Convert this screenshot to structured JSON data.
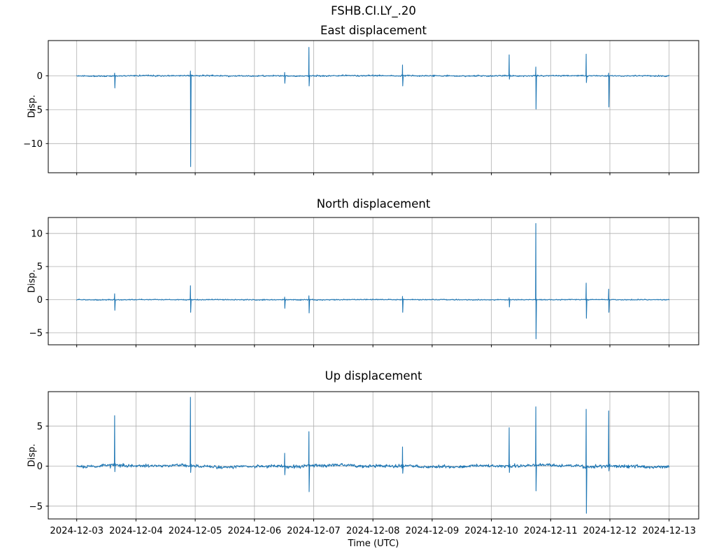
{
  "figure": {
    "suptitle": "FSHB.CI.LY_.20",
    "xlabel": "Time (UTC)"
  },
  "chart_data": {
    "type": "line",
    "suptitle": "FSHB.CI.LY_.20",
    "xlabel": "Time (UTC)",
    "line_color": "#1f77b4",
    "grid_color": "#b0b0b0",
    "spine_color": "#000000",
    "x_axis": {
      "units": "days since 2024-12-03 00:00 UTC",
      "xlim_days": [
        -0.48,
        10.5
      ],
      "data_range_days": [
        0,
        10
      ],
      "tick_positions_days": [
        0,
        1,
        2,
        3,
        4,
        5,
        6,
        7,
        8,
        9,
        10
      ],
      "tick_labels": [
        "2024-12-03",
        "2024-12-04",
        "2024-12-05",
        "2024-12-06",
        "2024-12-07",
        "2024-12-08",
        "2024-12-09",
        "2024-12-10",
        "2024-12-11",
        "2024-12-12",
        "2024-12-13"
      ]
    },
    "subplots": [
      {
        "id": "east",
        "title": "East displacement",
        "ylabel": "Disp.",
        "ylim": [
          -14.3,
          5.2
        ],
        "yticks": [
          0,
          -5,
          -10
        ],
        "baseline": 0,
        "noise": {
          "sigma": 0.05,
          "wander": 0.02,
          "seed": 11
        },
        "spikes": [
          {
            "t_days": 0.64,
            "peak": 0.4,
            "trough": -1.8
          },
          {
            "t_days": 1.92,
            "peak": 0.7,
            "trough": -13.4
          },
          {
            "t_days": 3.51,
            "peak": 0.5,
            "trough": -1.1
          },
          {
            "t_days": 3.92,
            "peak": 4.2,
            "trough": -1.5
          },
          {
            "t_days": 5.5,
            "peak": 1.6,
            "trough": -1.5
          },
          {
            "t_days": 7.3,
            "peak": 3.1,
            "trough": -0.5
          },
          {
            "t_days": 7.75,
            "peak": 1.3,
            "trough": -4.9
          },
          {
            "t_days": 8.6,
            "peak": 3.2,
            "trough": -1.0
          },
          {
            "t_days": 8.98,
            "peak": 0.4,
            "trough": -4.6
          }
        ]
      },
      {
        "id": "north",
        "title": "North displacement",
        "ylabel": "Disp.",
        "ylim": [
          -6.8,
          12.4
        ],
        "yticks": [
          10,
          5,
          0,
          -5
        ],
        "baseline": 0,
        "noise": {
          "sigma": 0.035,
          "wander": 0.012,
          "seed": 23
        },
        "spikes": [
          {
            "t_days": 0.64,
            "peak": 0.9,
            "trough": -1.6
          },
          {
            "t_days": 1.92,
            "peak": 2.1,
            "trough": -1.9
          },
          {
            "t_days": 3.51,
            "peak": 0.4,
            "trough": -1.3
          },
          {
            "t_days": 3.92,
            "peak": 0.6,
            "trough": -2.0
          },
          {
            "t_days": 5.5,
            "peak": 0.5,
            "trough": -1.9
          },
          {
            "t_days": 7.3,
            "peak": 0.3,
            "trough": -1.1
          },
          {
            "t_days": 7.75,
            "peak": 11.5,
            "trough": -5.9
          },
          {
            "t_days": 8.6,
            "peak": 2.5,
            "trough": -2.8
          },
          {
            "t_days": 8.98,
            "peak": 1.6,
            "trough": -1.9
          }
        ]
      },
      {
        "id": "up",
        "title": "Up displacement",
        "ylabel": "Disp.",
        "ylim": [
          -6.6,
          9.3
        ],
        "yticks": [
          5,
          0,
          -5
        ],
        "baseline": 0,
        "noise": {
          "sigma": 0.1,
          "wander": 0.07,
          "seed": 37
        },
        "spikes": [
          {
            "t_days": 0.64,
            "peak": 6.3,
            "trough": -0.7
          },
          {
            "t_days": 1.92,
            "peak": 8.6,
            "trough": -0.8
          },
          {
            "t_days": 3.51,
            "peak": 1.6,
            "trough": -1.1
          },
          {
            "t_days": 3.92,
            "peak": 4.3,
            "trough": -3.2
          },
          {
            "t_days": 5.5,
            "peak": 2.4,
            "trough": -0.9
          },
          {
            "t_days": 7.3,
            "peak": 4.8,
            "trough": -0.8
          },
          {
            "t_days": 7.75,
            "peak": 7.4,
            "trough": -3.1
          },
          {
            "t_days": 8.6,
            "peak": 7.1,
            "trough": -5.9
          },
          {
            "t_days": 8.98,
            "peak": 6.9,
            "trough": -0.6
          }
        ]
      }
    ]
  }
}
